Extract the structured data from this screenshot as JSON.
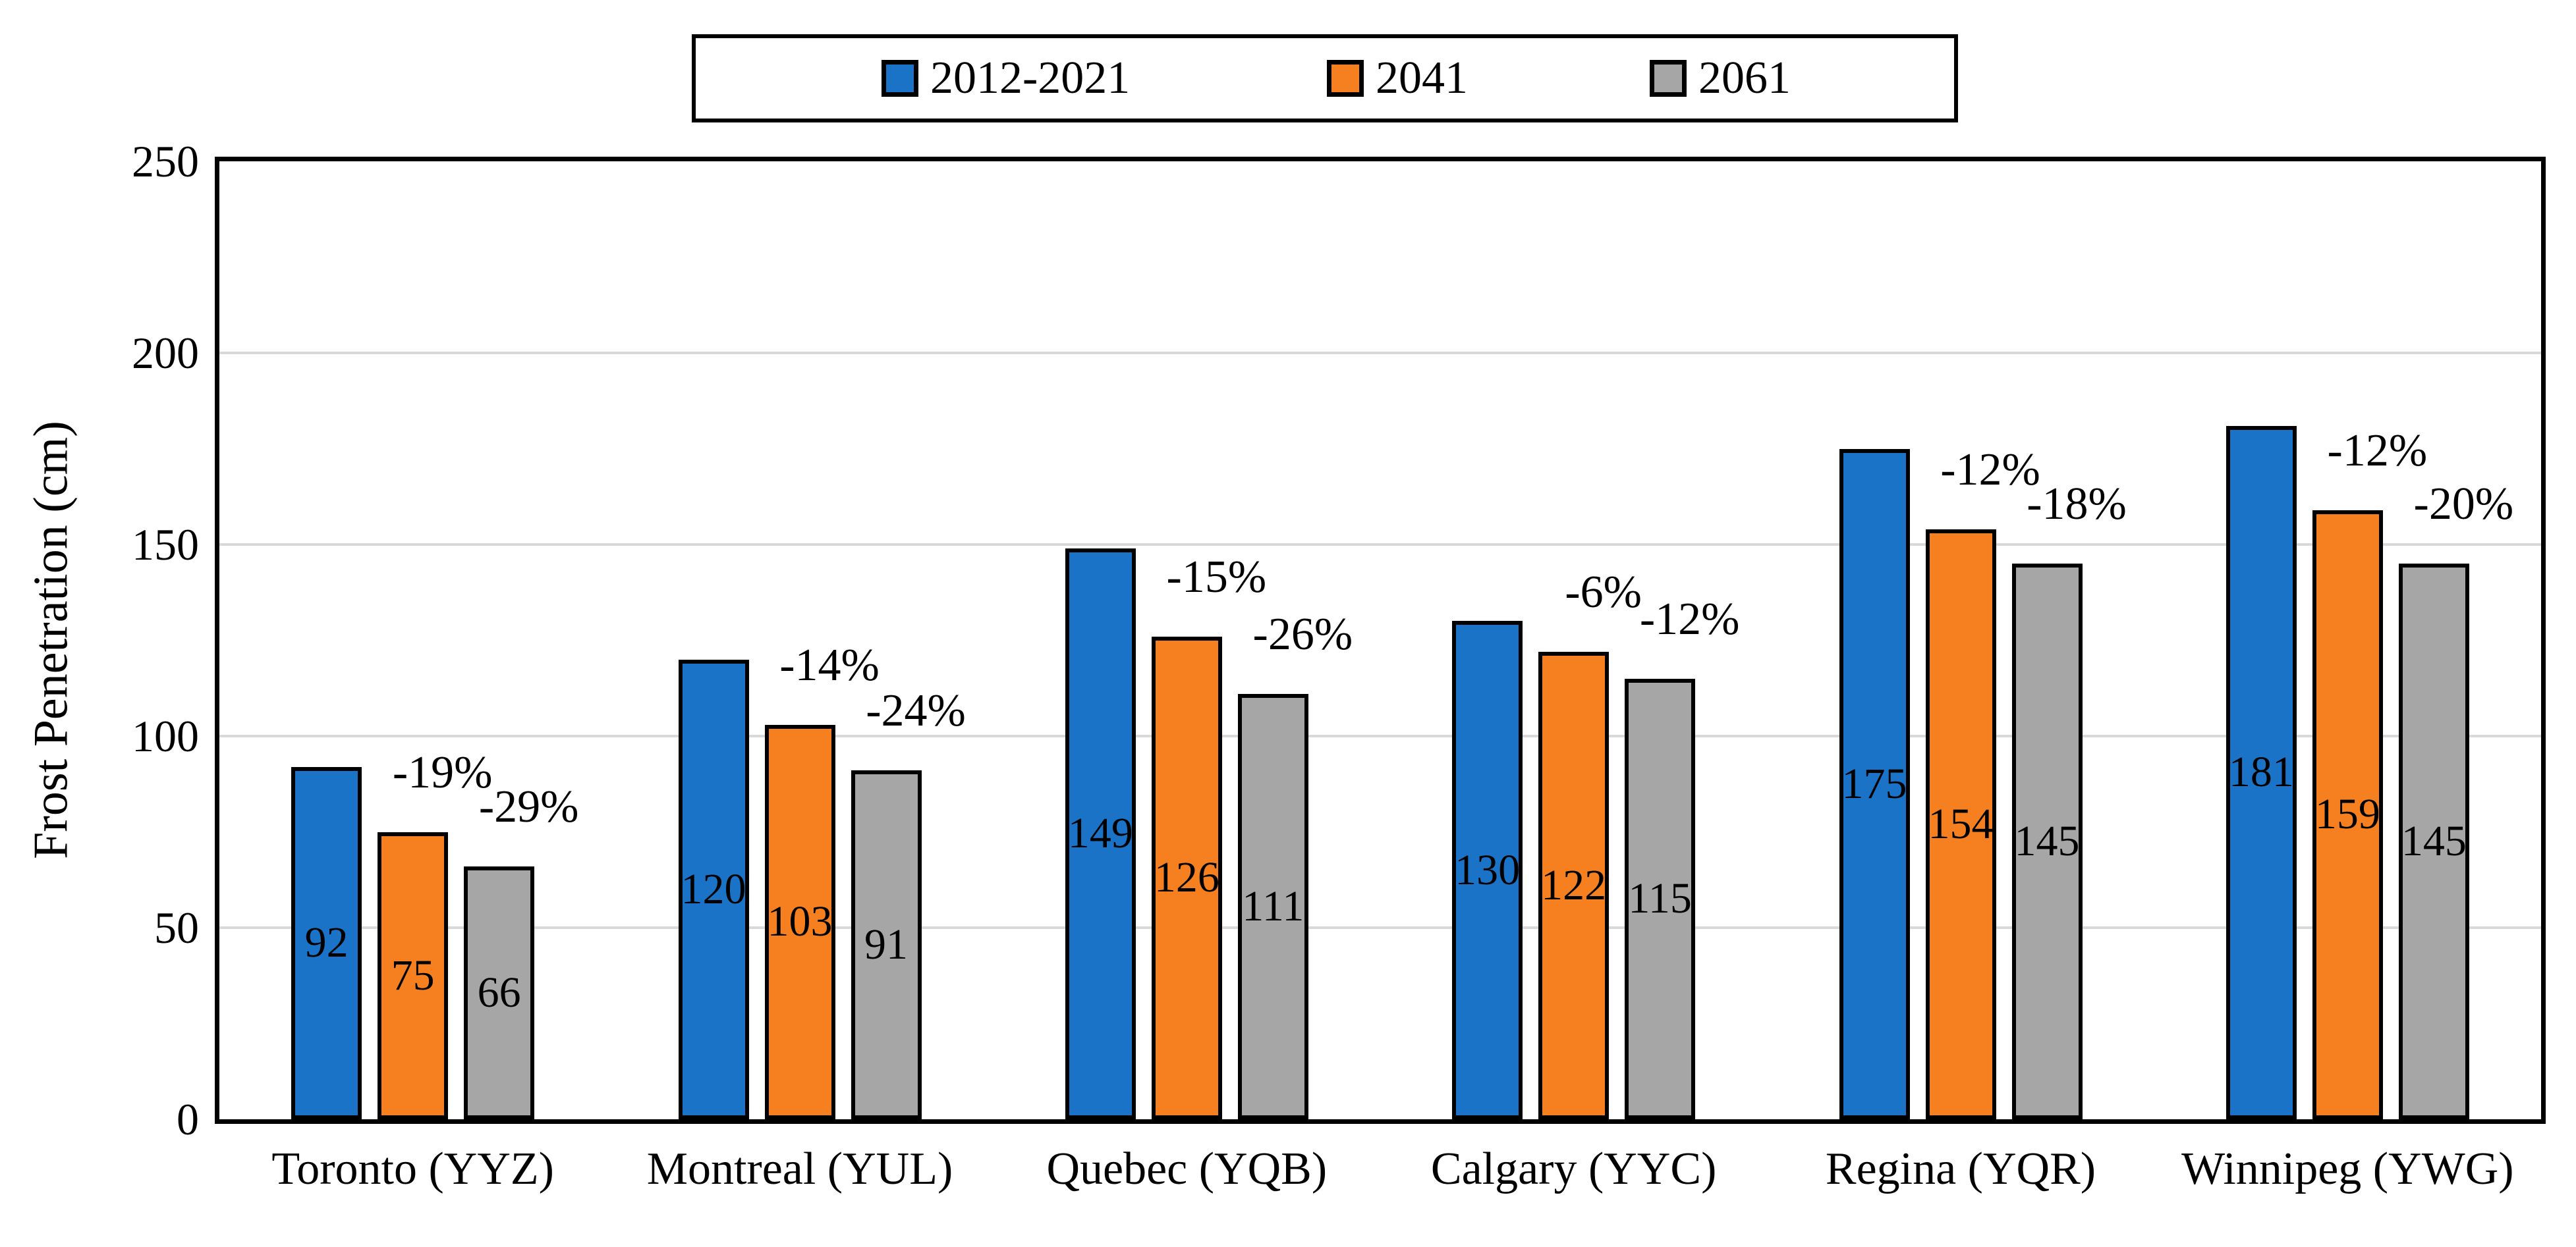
{
  "chart_data": {
    "type": "bar",
    "title": "",
    "ylabel": "Frost Penetration (cm)",
    "xlabel": "",
    "ylim": [
      0,
      250
    ],
    "y_ticks": [
      "0",
      "50",
      "100",
      "150",
      "200",
      "250"
    ],
    "grid": "horizontal gridlines every 50 cm",
    "legend_position": "top center, boxed",
    "categories": [
      "Toronto (YYZ)",
      "Montreal (YUL)",
      "Quebec (YQB)",
      "Calgary (YYC)",
      "Regina (YQR)",
      "Winnipeg (YWG)"
    ],
    "series": [
      {
        "name": "2012-2021",
        "color": "#1B73C8",
        "values": [
          92,
          120,
          149,
          130,
          175,
          181
        ]
      },
      {
        "name": "2041",
        "color": "#F68020",
        "values": [
          75,
          103,
          126,
          122,
          154,
          159
        ],
        "pct_change_labels": [
          "-19%",
          "-14%",
          "-15%",
          "-6%",
          "-12%",
          "-12%"
        ]
      },
      {
        "name": "2061",
        "color": "#A6A6A6",
        "values": [
          66,
          91,
          111,
          115,
          145,
          145
        ],
        "pct_change_labels": [
          "-29%",
          "-24%",
          "-26%",
          "-12%",
          "-18%",
          "-20%"
        ]
      }
    ],
    "style_colors": {
      "gridline": "#D9D9D9",
      "axis_and_borders": "#000000",
      "background": "#FFFFFF"
    }
  }
}
